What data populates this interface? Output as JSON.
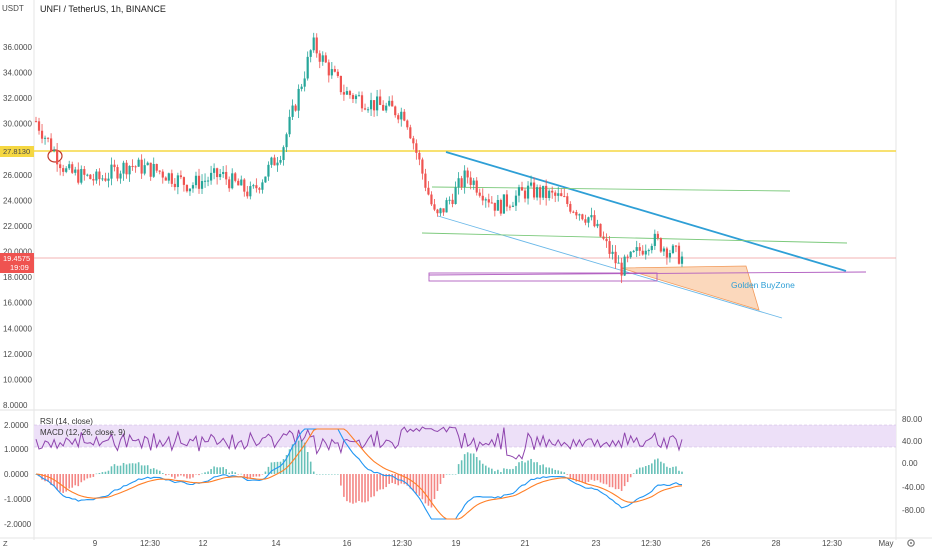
{
  "header": {
    "currency": "USDT",
    "symbol_title": "UNFI / TetherUS, 1h, BINANCE"
  },
  "price_axis": {
    "ticks": [
      "36.0000",
      "34.0000",
      "32.0000",
      "30.0000",
      "26.0000",
      "24.0000",
      "22.0000",
      "20.0000",
      "18.0000",
      "16.0000",
      "14.0000",
      "12.0000",
      "10.0000",
      "8.0000"
    ],
    "level_label": "27.8130",
    "current_price": "19.4575",
    "countdown": "19:09"
  },
  "x_axis": {
    "labels": [
      "9",
      "12:30",
      "12",
      "14",
      "16",
      "12:30",
      "19",
      "21",
      "23",
      "12:30",
      "26",
      "28",
      "12:30",
      "May"
    ]
  },
  "annotations": {
    "zone_label": "Golden BuyZone"
  },
  "rsi": {
    "title": "RSI (14, close)",
    "ticks": [
      "80.00",
      "40.00"
    ]
  },
  "macd": {
    "title": "MACD (12, 26, close, 9)",
    "ticks_left": [
      "2.0000",
      "1.0000",
      "0.0000",
      "-1.0000",
      "-2.0000"
    ],
    "ticks_right": [
      "0.00",
      "-40.00",
      "-80.00"
    ]
  },
  "icons": {
    "corner_left": "Z",
    "corner_right": "gear-icon"
  },
  "colors": {
    "up": "#26a69a",
    "down": "#ef5350",
    "level_line": "#f5d742",
    "trend_line": "#2e9fd6",
    "channel_line": "#7bc97b",
    "zone_fill": "#f9c8a0",
    "zone_stroke": "#f29a5a",
    "box_line": "#b05cc0",
    "rsi_fill": "#ede0f8",
    "rsi_line": "#8e44ad",
    "macd_line": "#2196f3",
    "signal_line": "#ff7f27"
  },
  "chart_data": {
    "type": "candlestick",
    "title": "UNFI / TetherUS, 1h, BINANCE",
    "ylabel": "USDT",
    "ylim": [
      7.5,
      38
    ],
    "x": [
      "8",
      "9",
      "10",
      "11",
      "12",
      "13",
      "14",
      "15",
      "16",
      "17",
      "18",
      "19",
      "20",
      "21",
      "22",
      "23",
      "24",
      "25"
    ],
    "close_path": [
      30.2,
      26.2,
      25.6,
      26.8,
      26.3,
      25.2,
      26.0,
      24.5,
      28.0,
      36.2,
      32.5,
      31.5,
      30.8,
      22.5,
      26.0,
      23.5,
      24.8,
      24.2,
      22.6,
      18.6,
      21.0,
      19.5
    ],
    "horizontal_levels": [
      27.813
    ],
    "current_price": 19.4575,
    "rsi_length": 14,
    "macd_params": [
      12,
      26,
      9
    ]
  }
}
